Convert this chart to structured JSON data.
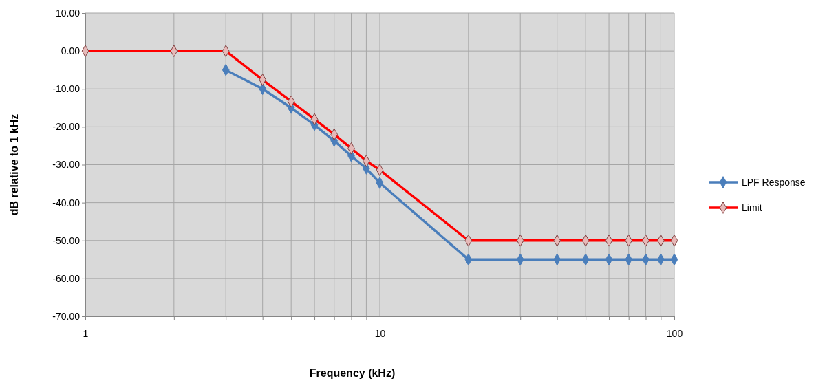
{
  "chart_data": {
    "type": "line",
    "xlabel": "Frequency (kHz)",
    "ylabel": "dB relative to 1 kHz",
    "log": "x",
    "grid": true,
    "legend": "right",
    "marker": "diamond",
    "line_style": "solid",
    "xlim": [
      1,
      100
    ],
    "ylim": [
      -70,
      10
    ],
    "xticks": [
      1,
      {
        "value": 2,
        "label": null
      },
      {
        "value": 3,
        "label": null
      },
      {
        "value": 4,
        "label": null
      },
      {
        "value": 5,
        "label": null
      },
      {
        "value": 6,
        "label": null
      },
      {
        "value": 7,
        "label": null
      },
      {
        "value": 8,
        "label": null
      },
      {
        "value": 9,
        "label": null
      },
      10,
      {
        "value": 20,
        "label": null
      },
      {
        "value": 30,
        "label": null
      },
      {
        "value": 40,
        "label": null
      },
      {
        "value": 50,
        "label": null
      },
      {
        "value": 60,
        "label": null
      },
      {
        "value": 70,
        "label": null
      },
      {
        "value": 80,
        "label": null
      },
      {
        "value": 90,
        "label": null
      },
      100
    ],
    "yticks": [
      {
        "value": 10,
        "label": "10.00"
      },
      {
        "value": 0,
        "label": "0.00"
      },
      {
        "value": -10,
        "label": "-10.00"
      },
      {
        "value": -20,
        "label": "-20.00"
      },
      {
        "value": -30,
        "label": "-30.00"
      },
      {
        "value": -40,
        "label": "-40.00"
      },
      {
        "value": -50,
        "label": "-50.00"
      },
      {
        "value": -60,
        "label": "-60.00"
      },
      {
        "value": -70,
        "label": "-70.00"
      }
    ],
    "series": [
      {
        "name": "LPF Response",
        "color": "#4a7ebb",
        "x": [
          3,
          4,
          5,
          6,
          7,
          8,
          9,
          10,
          20,
          30,
          40,
          50,
          60,
          70,
          80,
          90,
          100
        ],
        "values": [
          -5,
          -10,
          -15,
          -19.5,
          -23.7,
          -27.7,
          -31,
          -34.8,
          -55,
          -55,
          -55,
          -55,
          -55,
          -55,
          -55,
          -55,
          -55
        ]
      },
      {
        "name": "Limit",
        "color": "#ff0000",
        "x": [
          1,
          2,
          3,
          4,
          5,
          6,
          7,
          8,
          9,
          10,
          20,
          30,
          40,
          50,
          60,
          70,
          80,
          90,
          100
        ],
        "values": [
          0,
          0,
          0,
          -7.6,
          -13.3,
          -18,
          -22,
          -25.7,
          -29,
          -31.4,
          -50,
          -50,
          -50,
          -50,
          -50,
          -50,
          -50,
          -50,
          -50
        ]
      }
    ]
  }
}
